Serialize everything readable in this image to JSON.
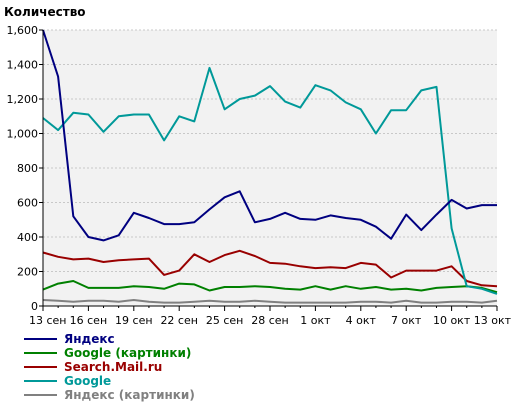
{
  "chart_data": {
    "type": "line",
    "title": "Количество",
    "xlabel": "",
    "ylabel": "",
    "ylim": [
      0,
      1600
    ],
    "y_ticks": [
      0,
      200,
      400,
      600,
      800,
      1000,
      1200,
      1400,
      1600
    ],
    "y_tick_labels": [
      "0",
      "200",
      "400",
      "600",
      "800",
      "1,000",
      "1,200",
      "1,400",
      "1,600"
    ],
    "x_tick_labels": [
      "13 сен",
      "16 сен",
      "19 сен",
      "22 сен",
      "25 сен",
      "28 сен",
      "1 окт",
      "4 окт",
      "7 окт",
      "10 окт",
      "13 окт"
    ],
    "x_count": 31,
    "grid": true,
    "legend_position": "bottom-left",
    "plot_background": "#f2f2f2",
    "series": [
      {
        "name": "Яндекс",
        "color": "#000080",
        "values": [
          1600,
          1330,
          520,
          400,
          380,
          410,
          540,
          510,
          475,
          475,
          485,
          560,
          630,
          665,
          485,
          505,
          540,
          505,
          500,
          525,
          510,
          500,
          460,
          390,
          530,
          440,
          530,
          615,
          565,
          585,
          585
        ]
      },
      {
        "name": "Google (картинки)",
        "color": "#008000",
        "values": [
          95,
          130,
          145,
          105,
          105,
          105,
          115,
          110,
          100,
          130,
          125,
          90,
          110,
          110,
          115,
          110,
          100,
          95,
          115,
          95,
          115,
          100,
          110,
          95,
          100,
          90,
          105,
          110,
          115,
          105,
          80
        ]
      },
      {
        "name": "Search.Mail.ru",
        "color": "#990000",
        "values": [
          310,
          285,
          270,
          275,
          255,
          265,
          270,
          275,
          180,
          205,
          300,
          255,
          295,
          320,
          290,
          250,
          245,
          230,
          220,
          225,
          220,
          250,
          240,
          165,
          205,
          205,
          205,
          230,
          145,
          120,
          115
        ]
      },
      {
        "name": "Google",
        "color": "#009999",
        "values": [
          1090,
          1020,
          1120,
          1110,
          1010,
          1100,
          1110,
          1110,
          960,
          1100,
          1070,
          1380,
          1140,
          1200,
          1220,
          1275,
          1185,
          1150,
          1280,
          1250,
          1180,
          1140,
          1000,
          1135,
          1135,
          1250,
          1270,
          450,
          115,
          100,
          70
        ]
      },
      {
        "name": "Яндекс (картинки)",
        "color": "#808080",
        "values": [
          35,
          30,
          25,
          30,
          30,
          25,
          35,
          25,
          20,
          20,
          25,
          30,
          25,
          25,
          30,
          25,
          20,
          20,
          20,
          20,
          20,
          25,
          25,
          20,
          30,
          20,
          20,
          25,
          25,
          20,
          30
        ]
      }
    ]
  }
}
